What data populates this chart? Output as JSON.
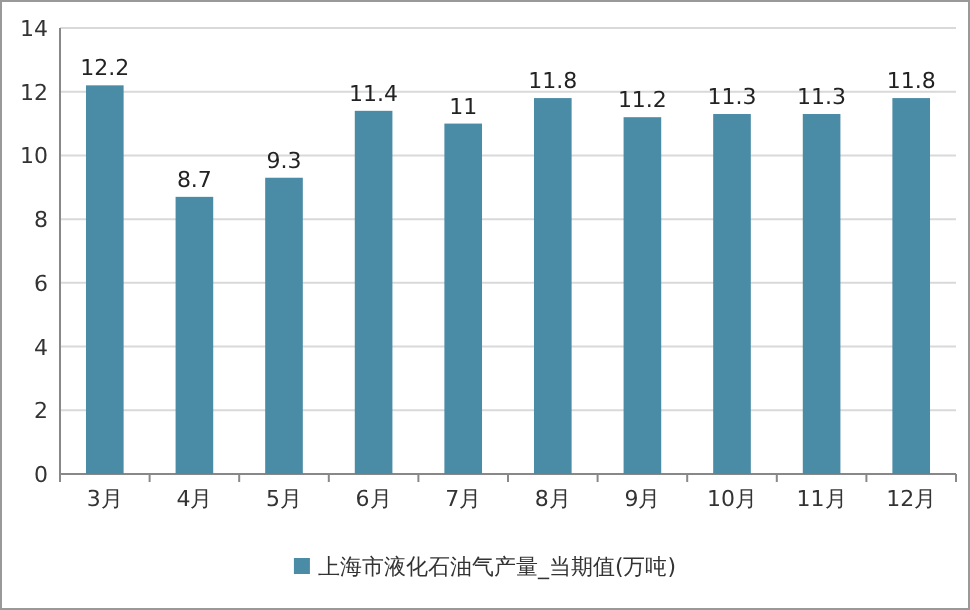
{
  "chart_data": {
    "type": "bar",
    "categories": [
      "3月",
      "4月",
      "5月",
      "6月",
      "7月",
      "8月",
      "9月",
      "10月",
      "11月",
      "12月"
    ],
    "series": [
      {
        "name": "上海市液化石油气产量_当期值(万吨)",
        "color": "#4a8ba6",
        "values": [
          12.2,
          8.7,
          9.3,
          11.4,
          11,
          11.8,
          11.2,
          11.3,
          11.3,
          11.8
        ]
      }
    ],
    "ylim": [
      0,
      14
    ],
    "yticks": [
      0,
      2,
      4,
      6,
      8,
      10,
      12,
      14
    ],
    "grid": "y",
    "legend": "bottom",
    "data_labels": true
  }
}
